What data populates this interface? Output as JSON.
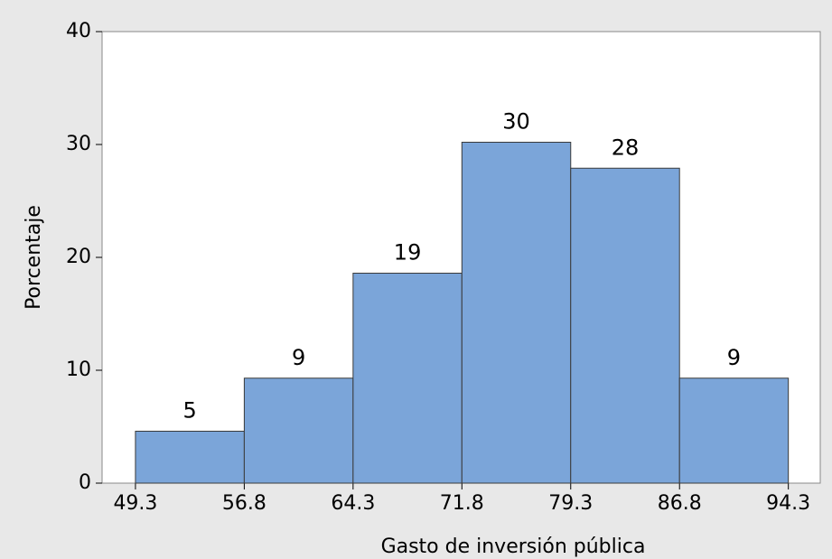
{
  "chart_data": {
    "type": "histogram",
    "xlabel": "Gasto de inversión pública",
    "ylabel": "Porcentaje",
    "bins": [
      49.3,
      56.8,
      64.3,
      71.8,
      79.3,
      86.8,
      94.3
    ],
    "values": [
      4.6,
      9.3,
      18.6,
      30.2,
      27.9,
      9.3
    ],
    "value_labels": [
      "5",
      "9",
      "19",
      "30",
      "28",
      "9"
    ],
    "color": "#7ba5d9",
    "xlim": [
      47.0,
      96.5
    ],
    "xticks": [
      49.3,
      56.8,
      64.3,
      71.8,
      79.3,
      86.8,
      94.3
    ],
    "ylim": [
      0,
      40
    ],
    "yticks": [
      0,
      10,
      20,
      30,
      40
    ]
  }
}
